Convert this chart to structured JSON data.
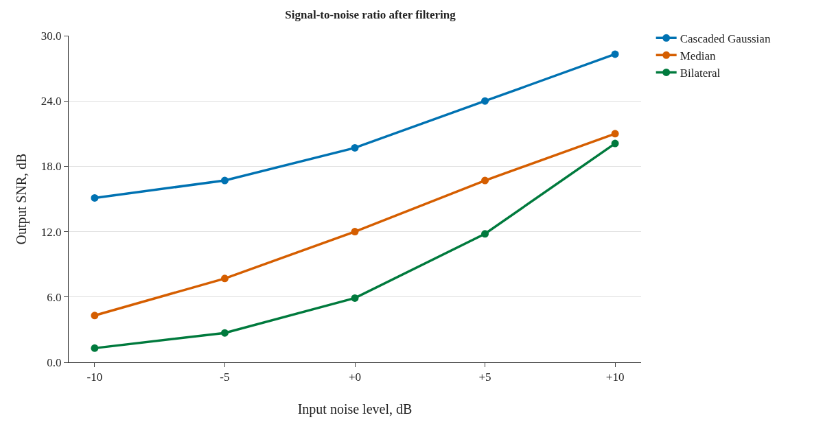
{
  "chart_data": {
    "type": "line",
    "title": "Signal-to-noise ratio after filtering",
    "xlabel": "Input noise level, dB",
    "ylabel": "Output SNR, dB",
    "categories": [
      "-10",
      "-5",
      "+0",
      "+5",
      "+10"
    ],
    "series": [
      {
        "name": "Cascaded Gaussian",
        "color": "#0072b2",
        "values": [
          15.1,
          16.7,
          19.7,
          24.0,
          28.3
        ]
      },
      {
        "name": "Median",
        "color": "#d55e00",
        "values": [
          4.3,
          7.7,
          12.0,
          16.7,
          21.0
        ]
      },
      {
        "name": "Bilateral",
        "color": "#007a3d",
        "values": [
          1.3,
          2.7,
          5.9,
          11.8,
          20.1
        ]
      }
    ],
    "ylim": [
      0,
      30
    ],
    "yticks": [
      {
        "value": 0,
        "label": "0.0"
      },
      {
        "value": 6,
        "label": "6.0"
      },
      {
        "value": 12,
        "label": "12.0"
      },
      {
        "value": 18,
        "label": "18.0"
      },
      {
        "value": 24,
        "label": "24.0"
      },
      {
        "value": 30,
        "label": "30.0"
      }
    ],
    "grid": "y",
    "legend": "top right",
    "marker": "circle",
    "line_style": "solid"
  }
}
